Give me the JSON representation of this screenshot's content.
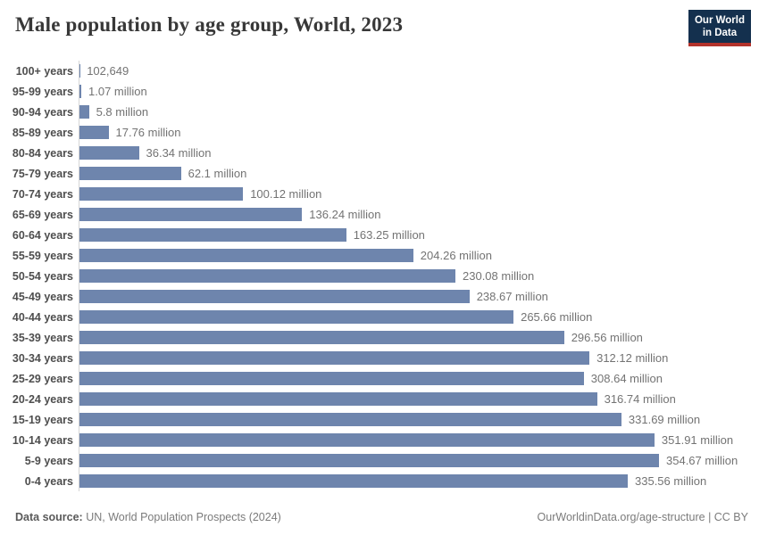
{
  "header": {
    "title": "Male population by age group, World, 2023",
    "logo": {
      "line1": "Our World",
      "line2": "in Data"
    }
  },
  "chart_data": {
    "type": "bar",
    "orientation": "horizontal",
    "title": "Male population by age group, World, 2023",
    "entity": "World",
    "year": 2023,
    "bar_color": "#6e85ad",
    "axis_color": "#d6d6d6",
    "legend_position": "none",
    "grid": false,
    "categories": [
      "100+ years",
      "95-99 years",
      "90-94 years",
      "85-89 years",
      "80-84 years",
      "75-79 years",
      "70-74 years",
      "65-69 years",
      "60-64 years",
      "55-59 years",
      "50-54 years",
      "45-49 years",
      "40-44 years",
      "35-39 years",
      "30-34 years",
      "25-29 years",
      "20-24 years",
      "15-19 years",
      "10-14 years",
      "5-9 years",
      "0-4 years"
    ],
    "values_millions": [
      0.102649,
      1.07,
      5.8,
      17.76,
      36.34,
      62.1,
      100.12,
      136.24,
      163.25,
      204.26,
      230.08,
      238.67,
      265.66,
      296.56,
      312.12,
      308.64,
      316.74,
      331.69,
      351.91,
      354.67,
      335.56
    ],
    "value_labels": [
      "102,649",
      "1.07 million",
      "5.8 million",
      "17.76 million",
      "36.34 million",
      "62.1 million",
      "100.12 million",
      "136.24 million",
      "163.25 million",
      "204.26 million",
      "230.08 million",
      "238.67 million",
      "265.66 million",
      "296.56 million",
      "312.12 million",
      "308.64 million",
      "316.74 million",
      "331.69 million",
      "351.91 million",
      "354.67 million",
      "335.56 million"
    ],
    "xlabel": "",
    "ylabel": "",
    "xlim_millions": [
      0,
      400
    ]
  },
  "footer": {
    "source_label": "Data source:",
    "source_text": " UN, World Population Prospects (2024)",
    "attribution": "OurWorldinData.org/age-structure | CC BY"
  }
}
